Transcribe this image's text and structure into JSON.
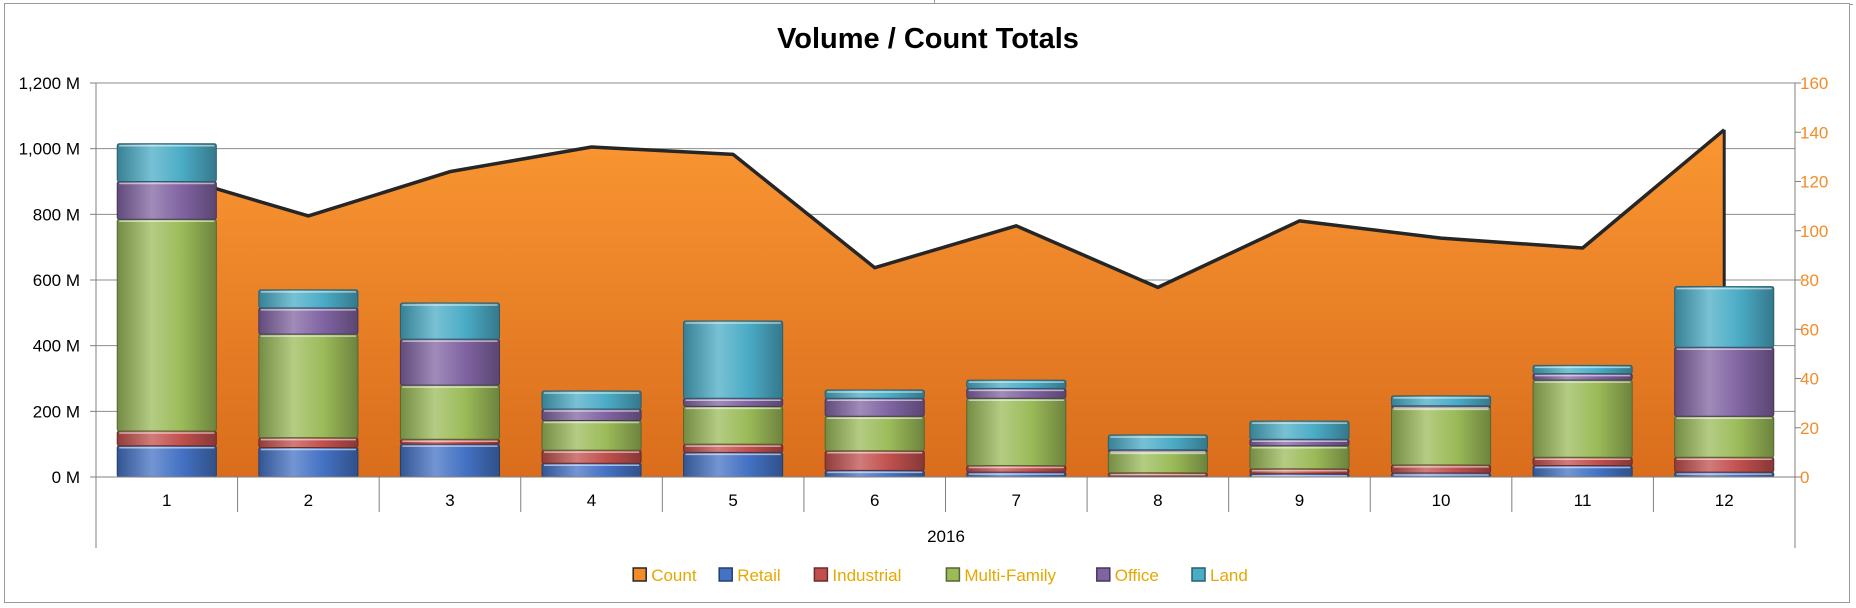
{
  "chart_data": {
    "type": "bar",
    "title": "Volume / Count Totals",
    "x_group_label": "2016",
    "categories": [
      "1",
      "2",
      "3",
      "4",
      "5",
      "6",
      "7",
      "8",
      "9",
      "10",
      "11",
      "12"
    ],
    "y_left": {
      "ylim": [
        0,
        1200
      ],
      "ticks": [
        0,
        200,
        400,
        600,
        800,
        1000,
        1200
      ],
      "tick_labels": [
        "0 M",
        "200 M",
        "400 M",
        "600 M",
        "800 M",
        "1,000 M",
        "1,200 M"
      ]
    },
    "y_right": {
      "ylim": [
        0,
        160
      ],
      "ticks": [
        0,
        20,
        40,
        60,
        80,
        100,
        120,
        140,
        160
      ],
      "tick_labels": [
        "0",
        "20",
        "40",
        "60",
        "80",
        "100",
        "120",
        "140",
        "160"
      ]
    },
    "grid": true,
    "legend_position": "bottom",
    "stacked": true,
    "series": [
      {
        "name": "Retail",
        "color": "#4472C4",
        "values": [
          95,
          90,
          100,
          42,
          75,
          20,
          15,
          3,
          10,
          12,
          35,
          15
        ]
      },
      {
        "name": "Industrial",
        "color": "#C0504D",
        "values": [
          45,
          30,
          15,
          40,
          25,
          60,
          20,
          10,
          15,
          25,
          25,
          45
        ]
      },
      {
        "name": "Multi-Family",
        "color": "#9BBB59",
        "values": [
          645,
          315,
          165,
          90,
          115,
          105,
          205,
          65,
          70,
          175,
          235,
          125
        ]
      },
      {
        "name": "Office",
        "color": "#8064A2",
        "values": [
          115,
          80,
          140,
          35,
          25,
          55,
          30,
          5,
          20,
          5,
          20,
          210
        ]
      },
      {
        "name": "Land",
        "color": "#4BACC6",
        "values": [
          115,
          55,
          110,
          55,
          235,
          25,
          25,
          45,
          55,
          30,
          25,
          185
        ]
      }
    ],
    "count_series": {
      "name": "Count",
      "type": "area",
      "axis": "right",
      "color": "#F28C28",
      "values": [
        123,
        106,
        124,
        134,
        131,
        85,
        102,
        77,
        104,
        97,
        93,
        141
      ]
    }
  }
}
